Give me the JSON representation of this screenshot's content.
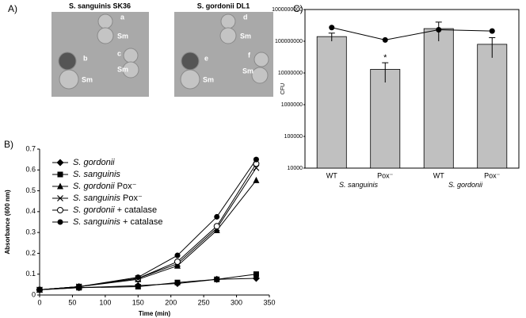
{
  "panel_a": {
    "panel_label": "A)",
    "titles": [
      "S. sanguinis SK36",
      "S. gordonii DL1"
    ],
    "spot_labels": [
      "a",
      "b",
      "c",
      "d",
      "e",
      "f"
    ],
    "sm_label": [
      "Sm",
      "Sm",
      "Sm",
      "Sm",
      "Sm",
      "Sm"
    ]
  },
  "chart_data": [
    {
      "type": "line",
      "panel_label": "B)",
      "x_label": "Time (min)",
      "y_label": "Absorbance (600 nm)",
      "x": [
        0,
        60,
        150,
        210,
        270,
        330
      ],
      "xlim": [
        0,
        350
      ],
      "xticks": [
        0,
        50,
        100,
        150,
        200,
        250,
        300,
        350
      ],
      "ylim": [
        0,
        0.7
      ],
      "yticks": [
        0,
        0.1,
        0.2,
        0.3,
        0.4,
        0.5,
        0.6,
        0.7
      ],
      "series": [
        {
          "name": "S. gordonii",
          "color": "#000000",
          "marker": "diamond",
          "values": [
            0.025,
            0.035,
            0.045,
            0.055,
            0.075,
            0.08
          ]
        },
        {
          "name": "S. sanguinis",
          "color": "#000000",
          "marker": "square",
          "values": [
            0.025,
            0.035,
            0.04,
            0.06,
            0.075,
            0.1
          ]
        },
        {
          "name": "S. gordonii Pox⁻",
          "color": "#000000",
          "marker": "triangle",
          "values": [
            0.025,
            0.04,
            0.075,
            0.14,
            0.31,
            0.55
          ]
        },
        {
          "name": "S. sanguinis Pox⁻",
          "color": "#000000",
          "marker": "x",
          "values": [
            0.025,
            0.04,
            0.08,
            0.15,
            0.32,
            0.61
          ]
        },
        {
          "name": "S. gordonii + catalase",
          "color": "#000000",
          "marker": "circle-open",
          "values": [
            0.025,
            0.04,
            0.08,
            0.16,
            0.33,
            0.63
          ]
        },
        {
          "name": "S. sanguinis + catalase",
          "color": "#000000",
          "marker": "circle",
          "values": [
            0.025,
            0.04,
            0.085,
            0.19,
            0.375,
            0.65
          ]
        }
      ]
    },
    {
      "type": "bar",
      "panel_label": "C)",
      "y_label": "CFU",
      "log_scale": true,
      "categories": [
        "WT",
        "Pox⁻",
        "WT",
        "Pox⁻"
      ],
      "groups": [
        "S. sanguinis",
        "S. gordonii"
      ],
      "ylim": [
        10000,
        1000000000
      ],
      "yticks": [
        10000,
        100000,
        1000000,
        10000000,
        100000000,
        1000000000
      ],
      "annotations": [
        {
          "text": "*",
          "category": 1
        }
      ],
      "series": [
        {
          "type": "bar",
          "color": "#c0c0c0",
          "values": [
            140000000,
            13000000,
            250000000,
            80000000
          ],
          "errors": [
            40000000,
            8000000,
            150000000,
            50000000
          ]
        },
        {
          "type": "line",
          "color": "#000000",
          "values": [
            270000000,
            110000000,
            230000000,
            210000000
          ]
        }
      ]
    }
  ]
}
